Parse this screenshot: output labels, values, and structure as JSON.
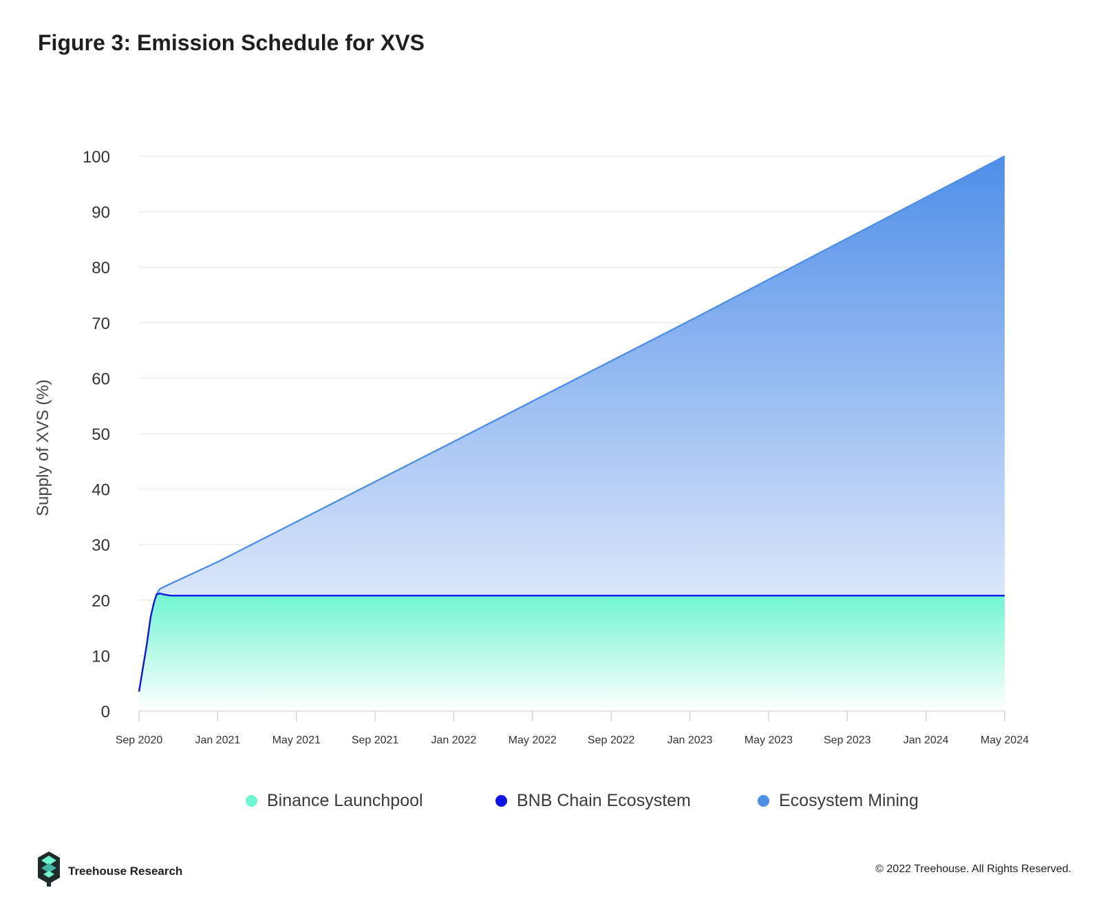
{
  "title": "Figure 3: Emission Schedule for XVS",
  "footer": {
    "brand": "Treehouse Research",
    "copyright": "© 2022 Treehouse. All Rights Reserved.",
    "logo_icon": "treehouse-logo-icon"
  },
  "colors": {
    "binance_launchpool": "#6ff5d0",
    "bnb_chain_ecosystem": "#0a13e8",
    "ecosystem_mining": "#4f8ee8",
    "grid": "#e6e6e6",
    "axis_text": "#333333"
  },
  "chart_data": {
    "type": "area",
    "stacked": true,
    "ylabel": "Supply of XVS (%)",
    "xlabel": "",
    "ylim": [
      0,
      100
    ],
    "yticks": [
      0,
      10,
      20,
      30,
      40,
      50,
      60,
      70,
      80,
      90,
      100
    ],
    "xlim": [
      "2020-09-01",
      "2024-05-01"
    ],
    "xticks": [
      "Sep 2020",
      "Jan 2021",
      "May 2021",
      "Sep 2021",
      "Jan 2022",
      "May 2022",
      "Sep 2022",
      "Jan 2023",
      "May 2023",
      "Sep 2023",
      "Jan 2024",
      "May 2024"
    ],
    "grid": true,
    "legend_position": "bottom",
    "series": [
      {
        "name": "Binance Launchpool",
        "style": "filled area, gradient to white",
        "x": [
          "2020-09-01",
          "2024-05-01"
        ],
        "y": [
          20.8,
          20.8
        ]
      },
      {
        "name": "BNB Chain Ecosystem",
        "style": "line",
        "x": [
          "2020-09-01",
          "2020-09-13",
          "2020-09-19",
          "2020-09-24",
          "2020-09-28",
          "2020-10-03",
          "2020-10-10",
          "2020-10-20",
          "2021-01-01",
          "2022-06-01",
          "2023-06-01",
          "2024-05-01"
        ],
        "y": [
          3.5,
          12.0,
          17.0,
          19.5,
          21.0,
          21.2,
          21.0,
          20.8,
          20.8,
          20.8,
          20.8,
          20.8
        ]
      },
      {
        "name": "Ecosystem Mining",
        "style": "filled area, gradient",
        "x": [
          "2020-09-28",
          "2020-10-03",
          "2020-10-10",
          "2020-10-17",
          "2021-01-01",
          "2022-01-01",
          "2023-01-01",
          "2024-05-01"
        ],
        "y": [
          21.0,
          22.0,
          22.4,
          22.8,
          26.9,
          48.6,
          70.4,
          100.0
        ]
      }
    ]
  }
}
